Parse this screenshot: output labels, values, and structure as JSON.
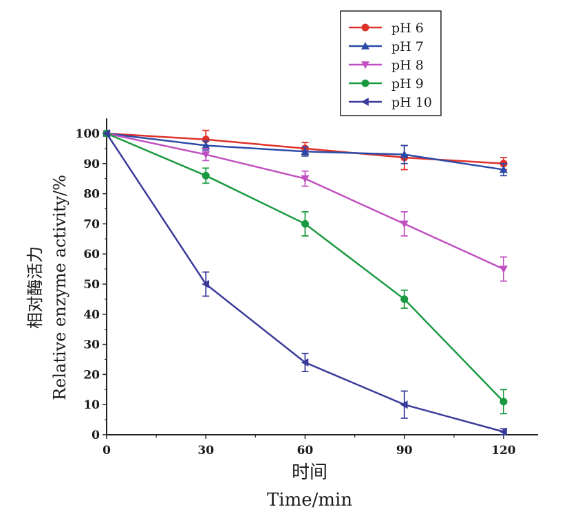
{
  "chart_data": {
    "type": "line",
    "x": [
      0,
      30,
      60,
      90,
      120
    ],
    "xticks": [
      "0",
      "30",
      "60",
      "90",
      "120"
    ],
    "yticks": [
      "0",
      "10",
      "20",
      "30",
      "40",
      "50",
      "60",
      "70",
      "80",
      "90",
      "100"
    ],
    "xlim": [
      0,
      130
    ],
    "ylim": [
      0,
      100
    ],
    "xlabel_cn": "时间",
    "xlabel": "Time/min",
    "ylabel_cn": "相对酶活力",
    "ylabel": "Relative enzyme activity/%",
    "grid": false,
    "legend_position": "top-right",
    "series": [
      {
        "name": "pH 6",
        "color": "#e0302a",
        "marker": "circle",
        "values": [
          100,
          98,
          95,
          92,
          90
        ],
        "errors": [
          0,
          3,
          2,
          4,
          2
        ]
      },
      {
        "name": "pH 7",
        "color": "#2a4aa8",
        "marker": "triangle-up",
        "values": [
          100,
          96,
          94,
          93,
          88
        ],
        "errors": [
          0,
          1.5,
          1.5,
          3,
          2
        ]
      },
      {
        "name": "pH 8",
        "color": "#c050c0",
        "marker": "triangle-down",
        "values": [
          100,
          93,
          85,
          70,
          55
        ],
        "errors": [
          0,
          2,
          2.5,
          4,
          4
        ]
      },
      {
        "name": "pH 9",
        "color": "#1a9a40",
        "marker": "circle",
        "values": [
          100,
          86,
          70,
          45,
          11
        ],
        "errors": [
          0,
          2.5,
          4,
          3,
          4
        ]
      },
      {
        "name": "pH 10",
        "color": "#3a3a9a",
        "marker": "triangle-left",
        "values": [
          100,
          50,
          24,
          10,
          1
        ],
        "errors": [
          0,
          4,
          3,
          4.5,
          1
        ]
      }
    ]
  }
}
